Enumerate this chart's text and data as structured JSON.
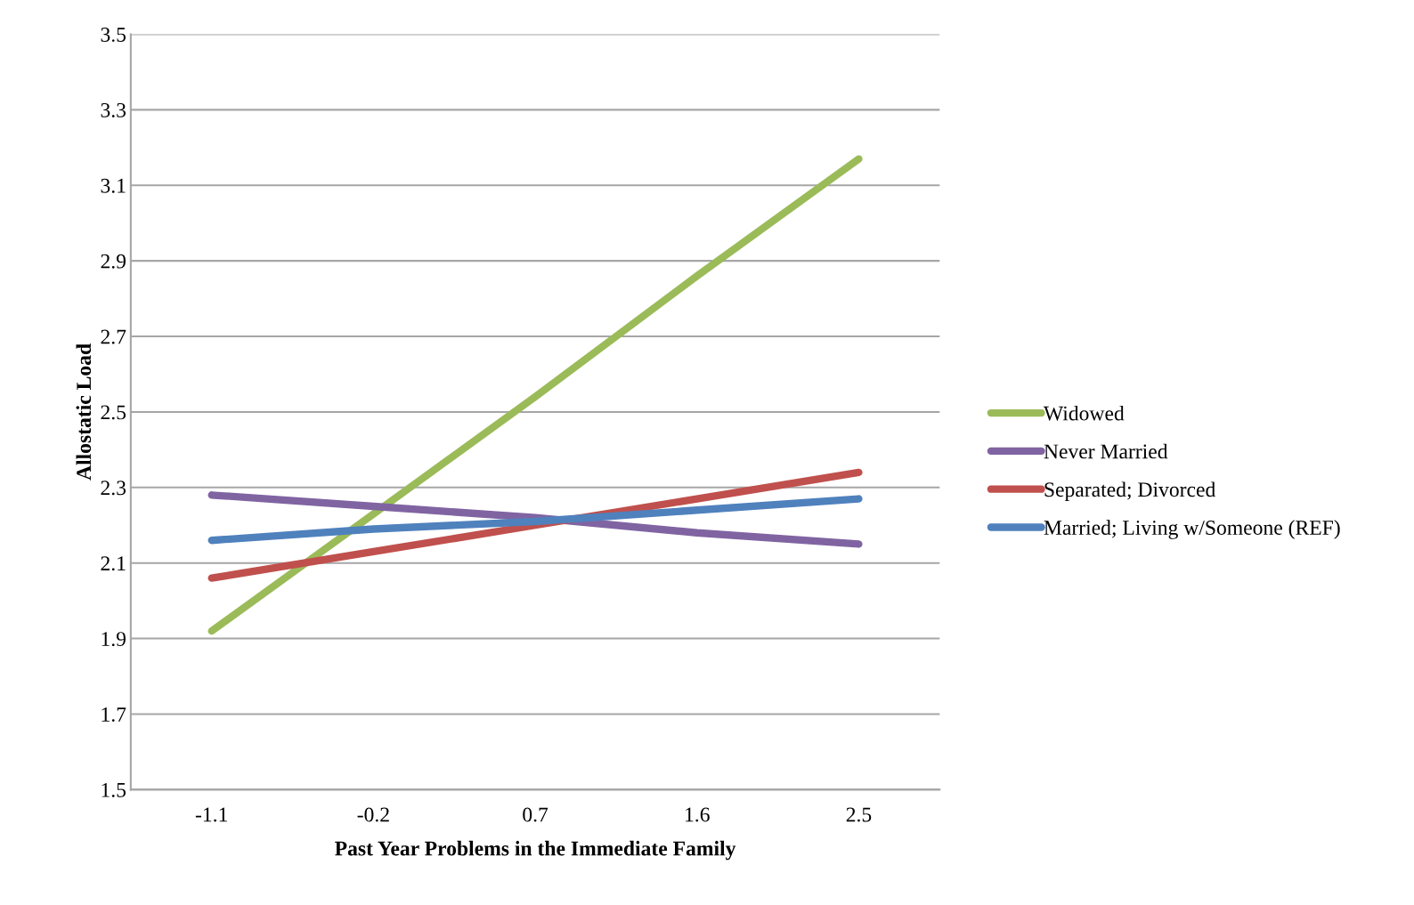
{
  "chart_data": {
    "type": "line",
    "xlabel": "Past Year Problems in the Immediate Family",
    "ylabel": "Allostatic Load",
    "categories": [
      "-1.1",
      "-0.2",
      "0.7",
      "1.6",
      "2.5"
    ],
    "series": [
      {
        "name": "Widowed",
        "color": "#9bbb59",
        "values": [
          1.92,
          2.23,
          2.54,
          2.86,
          3.17
        ]
      },
      {
        "name": "Never Married",
        "color": "#8064a2",
        "values": [
          2.28,
          2.25,
          2.22,
          2.18,
          2.15
        ]
      },
      {
        "name": "Separated; Divorced",
        "color": "#c0504d",
        "values": [
          2.06,
          2.13,
          2.2,
          2.27,
          2.34
        ]
      },
      {
        "name": "Married; Living w/Someone (REF)",
        "color": "#4f81bd",
        "values": [
          2.16,
          2.19,
          2.21,
          2.24,
          2.27
        ]
      }
    ],
    "ylim": [
      1.5,
      3.5
    ],
    "yticks": [
      1.5,
      1.7,
      1.9,
      2.1,
      2.3,
      2.5,
      2.7,
      2.9,
      3.1,
      3.3,
      3.5
    ],
    "grid": "y",
    "legend": "right",
    "marker": "none",
    "line_style": "solid"
  }
}
